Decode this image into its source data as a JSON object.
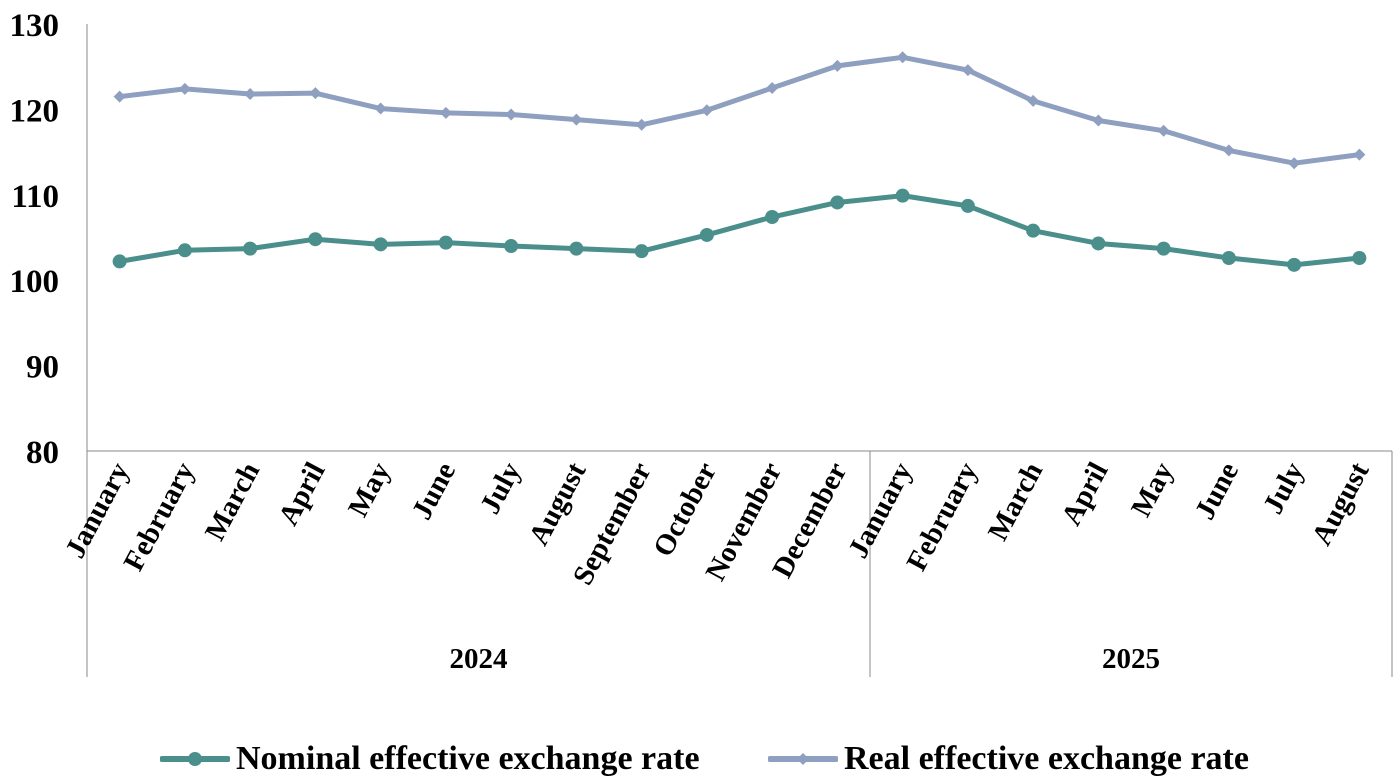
{
  "chart_data": {
    "type": "line",
    "title": "",
    "xlabel": "",
    "ylabel": "",
    "ylim": [
      80,
      130
    ],
    "yticks": [
      80,
      90,
      100,
      110,
      120,
      130
    ],
    "grid": false,
    "legend": "bottom",
    "categories": [
      "January",
      "February",
      "March",
      "April",
      "May",
      "June",
      "July",
      "August",
      "September",
      "October",
      "November",
      "December",
      "January",
      "February",
      "March",
      "April",
      "May",
      "June",
      "July",
      "August"
    ],
    "groups": [
      {
        "label": "2024",
        "count": 12
      },
      {
        "label": "2025",
        "count": 8
      }
    ],
    "series": [
      {
        "name": "Nominal effective exchange rate",
        "color": "#4a8f8b",
        "marker": "circle",
        "values": [
          102.2,
          103.5,
          103.7,
          104.8,
          104.2,
          104.4,
          104.0,
          103.7,
          103.4,
          105.3,
          107.4,
          109.1,
          109.9,
          108.7,
          105.8,
          104.3,
          103.7,
          102.6,
          101.8,
          102.6
        ]
      },
      {
        "name": "Real effective exchange rate",
        "color": "#8e9fbf",
        "marker": "diamond",
        "values": [
          121.5,
          122.4,
          121.8,
          121.9,
          120.1,
          119.6,
          119.4,
          118.8,
          118.2,
          119.9,
          122.5,
          125.1,
          126.1,
          124.6,
          121.0,
          118.7,
          117.5,
          115.2,
          113.7,
          114.7
        ]
      }
    ]
  }
}
